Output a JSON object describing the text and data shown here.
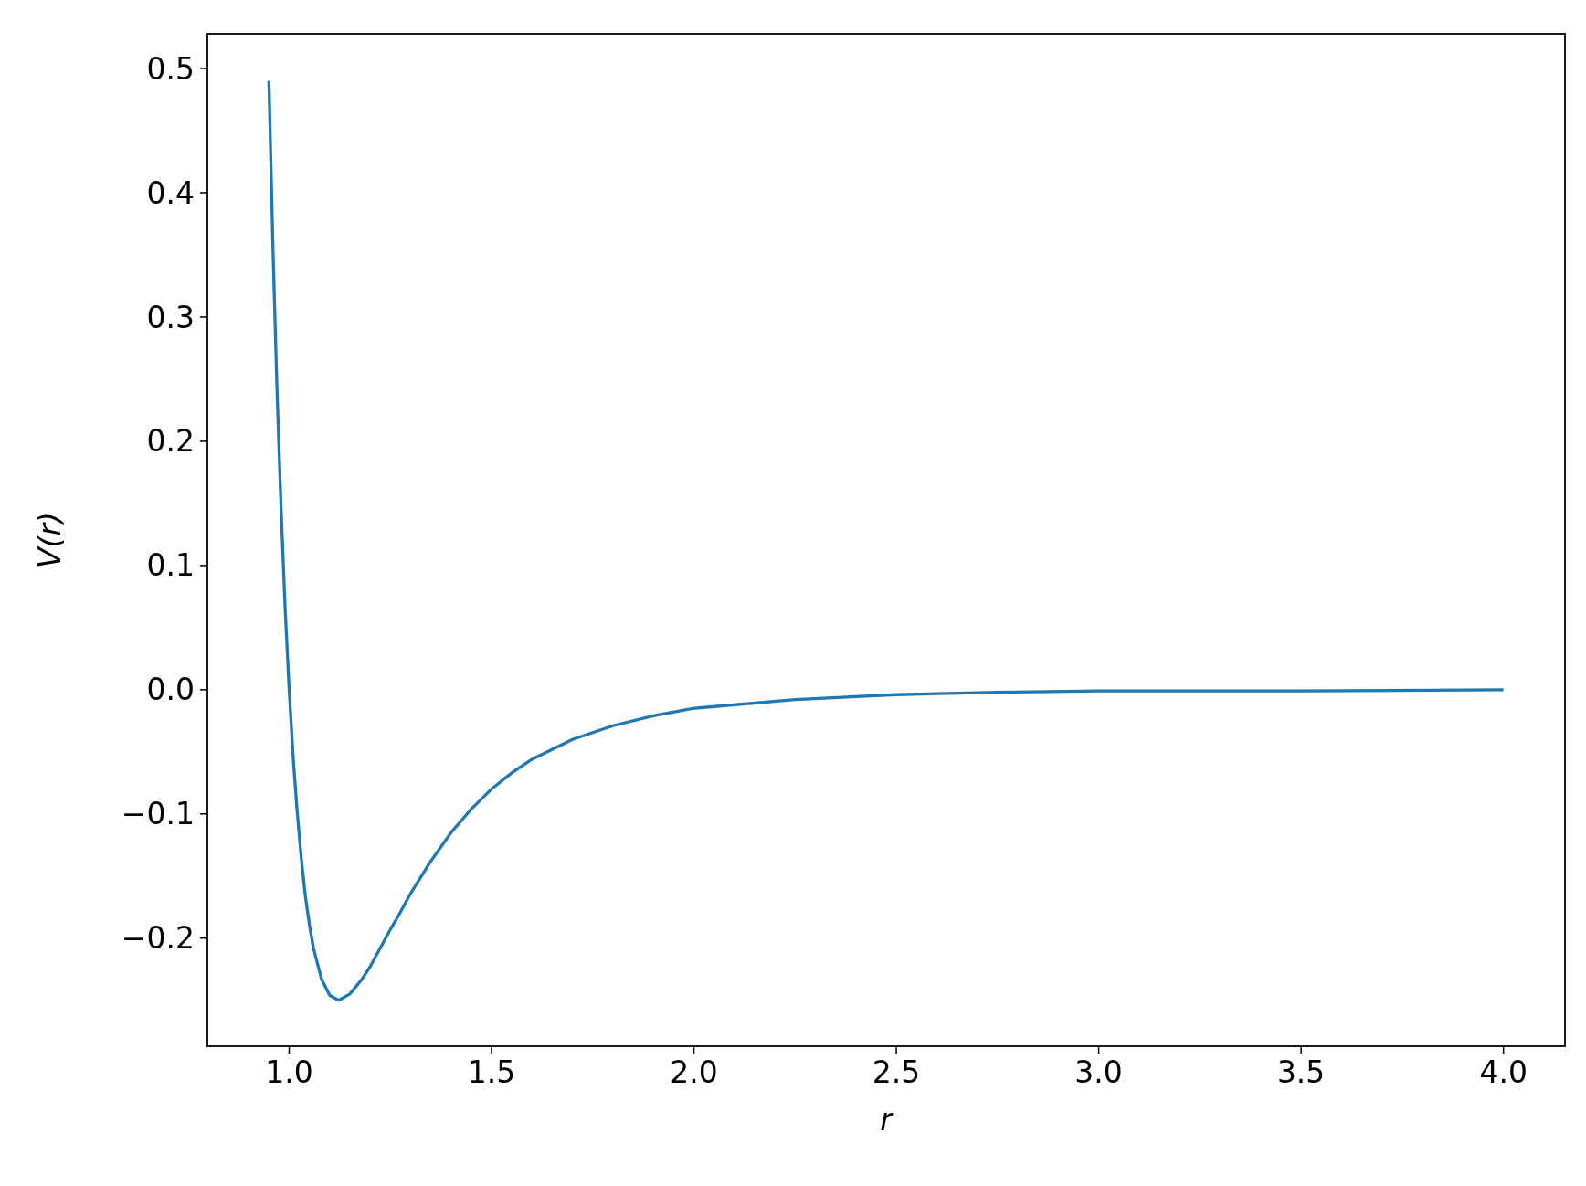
{
  "chart_data": {
    "type": "line",
    "xlabel": "r",
    "ylabel": "V(r)",
    "x": [
      0.95,
      0.96,
      0.97,
      0.98,
      0.99,
      1.0,
      1.01,
      1.02,
      1.03,
      1.04,
      1.05,
      1.06,
      1.08,
      1.1,
      1.1225,
      1.15,
      1.18,
      1.2,
      1.22,
      1.25,
      1.27,
      1.3,
      1.35,
      1.4,
      1.45,
      1.5,
      1.55,
      1.6,
      1.7,
      1.8,
      1.9,
      2.0,
      2.25,
      2.5,
      2.75,
      3.0,
      3.25,
      3.5,
      4.0
    ],
    "series": [
      {
        "color": "#1f77b4",
        "values": [
          0.49,
          0.355,
          0.241,
          0.146,
          0.066,
          0.0,
          -0.055,
          -0.099,
          -0.136,
          -0.166,
          -0.189,
          -0.208,
          -0.233,
          -0.246,
          -0.25,
          -0.245,
          -0.233,
          -0.223,
          -0.211,
          -0.193,
          -0.182,
          -0.164,
          -0.138,
          -0.115,
          -0.096,
          -0.08,
          -0.067,
          -0.056,
          -0.04,
          -0.029,
          -0.021,
          -0.015,
          -0.008,
          -0.004,
          -0.002,
          -0.001,
          -0.001,
          -0.001,
          0.0
        ]
      }
    ],
    "xlim": [
      0.798,
      4.152
    ],
    "ylim": [
      -0.287,
      0.528
    ],
    "xticks": [
      {
        "value": 1.0,
        "label": "1.0"
      },
      1.5,
      {
        "value": 2.0,
        "label": "2.0"
      },
      2.5,
      {
        "value": 3.0,
        "label": "3.0"
      },
      3.5,
      {
        "value": 4.0,
        "label": "4.0"
      }
    ],
    "yticks": [
      {
        "value": -0.2,
        "label": "−0.2"
      },
      {
        "value": -0.1,
        "label": "−0.1"
      },
      {
        "value": 0,
        "label": "0.0"
      },
      0.1,
      0.2,
      0.3,
      0.4,
      0.5
    ],
    "grid": false,
    "line_style": "solid"
  }
}
